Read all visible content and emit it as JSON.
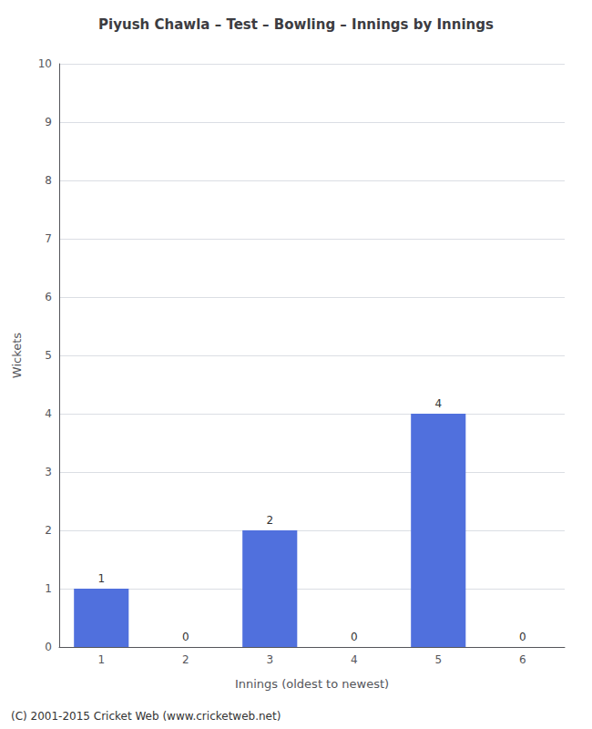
{
  "chart_data": {
    "type": "bar",
    "title": "Piyush Chawla – Test – Bowling – Innings by Innings",
    "xlabel": "Innings (oldest to newest)",
    "ylabel": "Wickets",
    "categories": [
      "1",
      "2",
      "3",
      "4",
      "5",
      "6"
    ],
    "values": [
      1,
      0,
      2,
      0,
      4,
      0
    ],
    "ylim": [
      0,
      10
    ],
    "yticks": [
      0,
      1,
      2,
      3,
      4,
      5,
      6,
      7,
      8,
      9,
      10
    ],
    "grid": true,
    "data_labels": true,
    "annotations": [
      "(C) 2001-2015 Cricket Web (www.cricketweb.net)"
    ]
  }
}
